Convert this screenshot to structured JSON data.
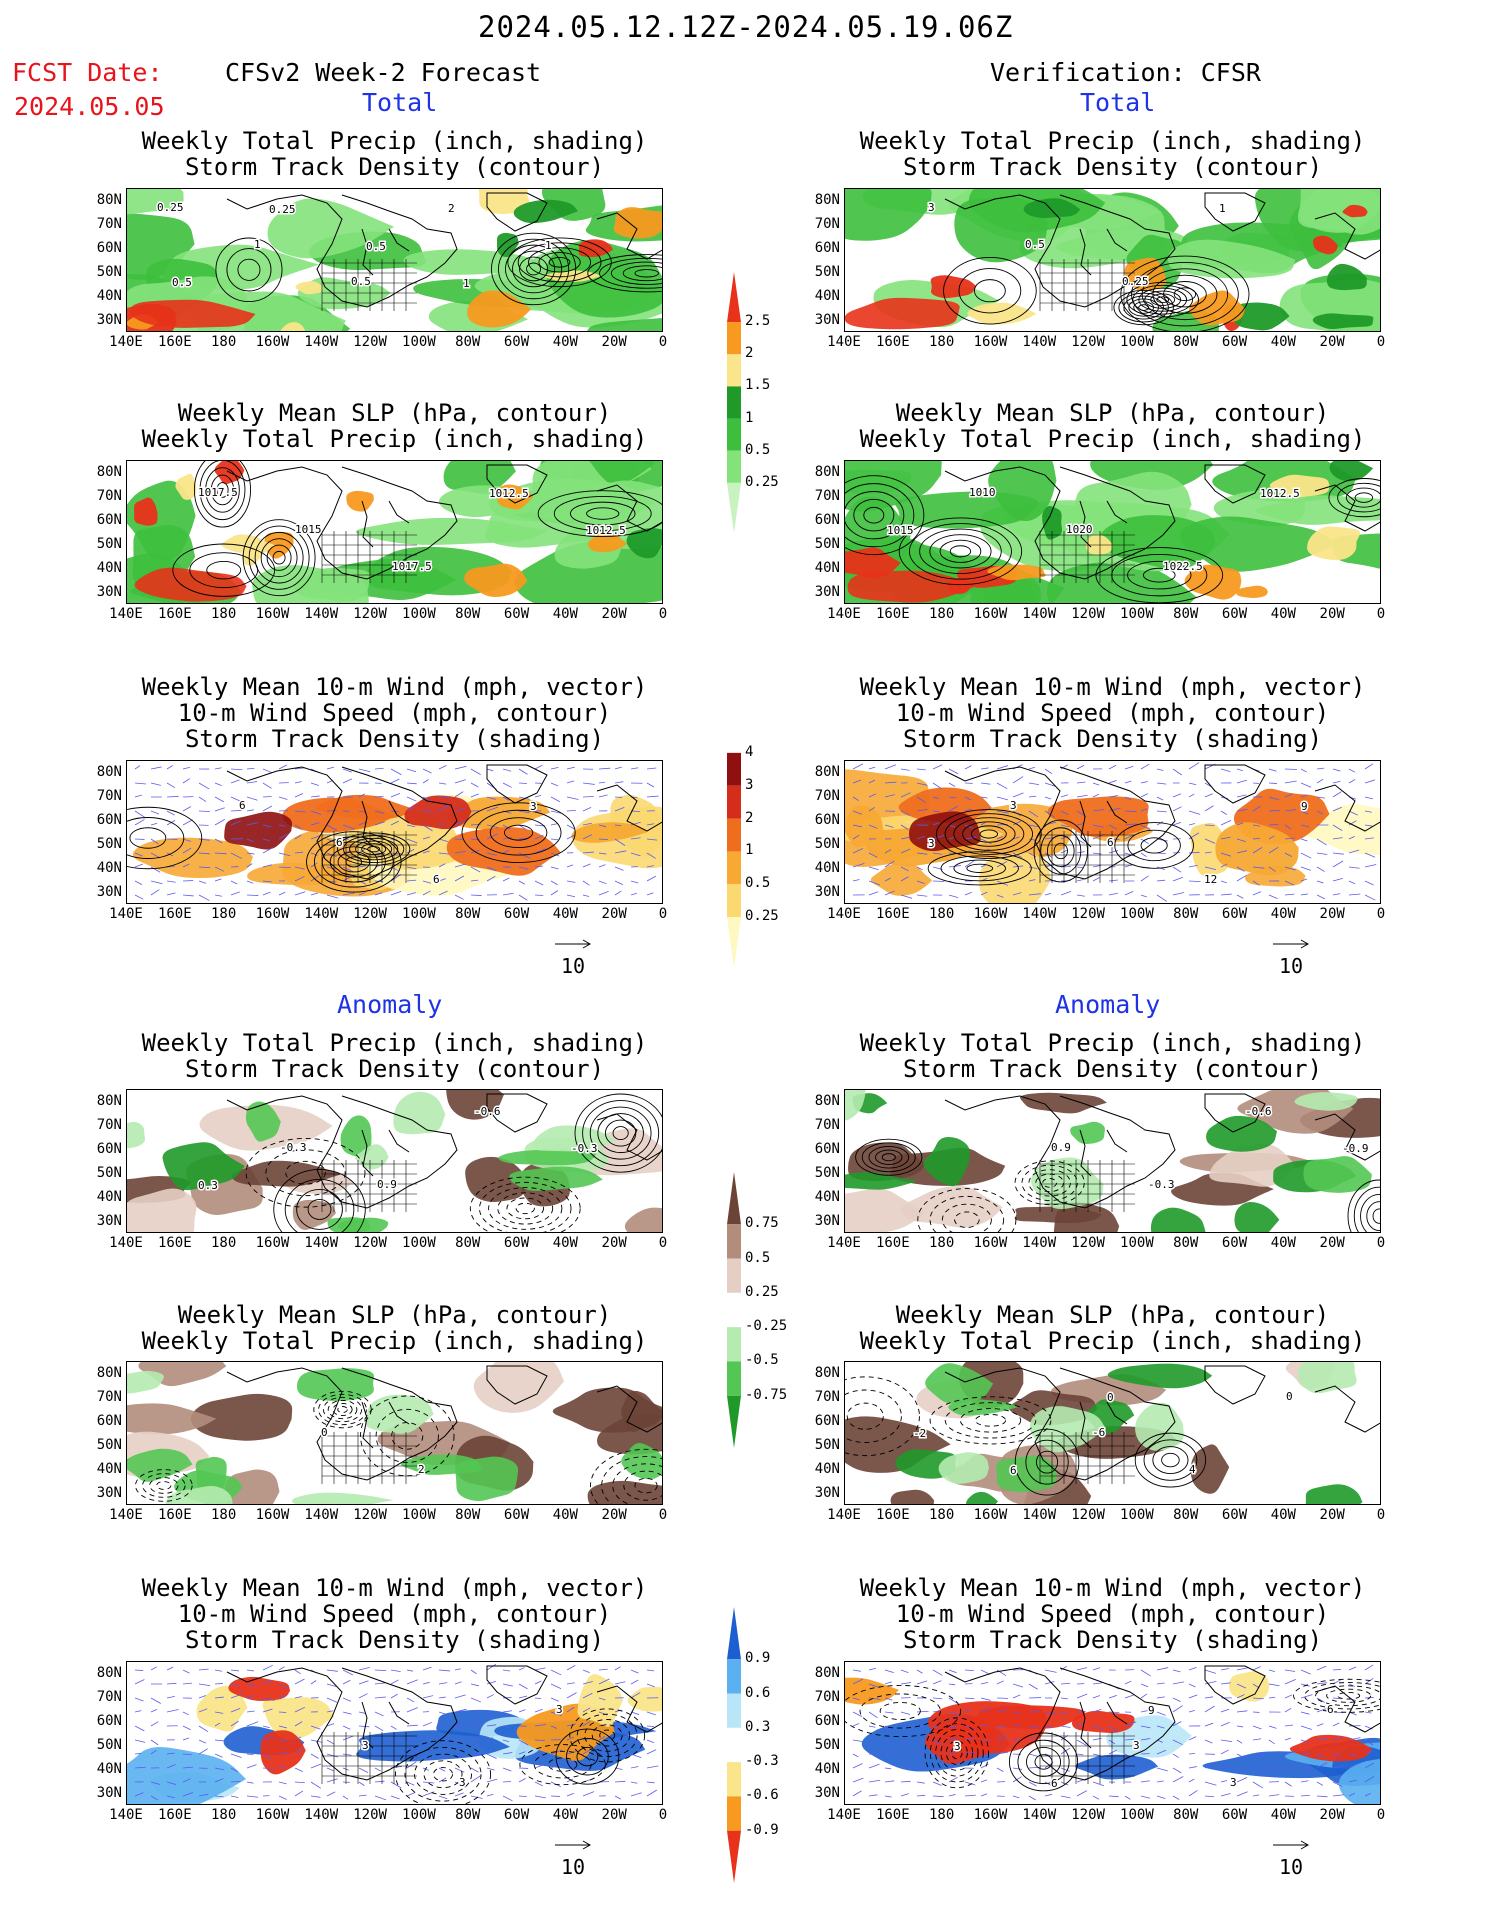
{
  "header": {
    "date_range": "2024.05.12.12Z-2024.05.19.06Z",
    "fcst_label": "FCST Date:",
    "fcst_date": "2024.05.05",
    "left_title": "CFSv2 Week-2 Forecast",
    "right_title": "Verification: CFSR",
    "section_total": "Total",
    "section_anomaly": "Anomaly"
  },
  "panel_titles": {
    "precip_storm": [
      "Weekly Total Precip (inch, shading)",
      "Storm Track Density (contour)"
    ],
    "slp_precip": [
      "Weekly Mean SLP (hPa, contour)",
      "Weekly Total Precip (inch, shading)"
    ],
    "wind": [
      "Weekly Mean 10-m Wind (mph, vector)",
      "10-m Wind Speed (mph, contour)",
      "Storm Track Density (shading)"
    ]
  },
  "axes": {
    "lat_labels": [
      "80N",
      "70N",
      "60N",
      "50N",
      "40N",
      "30N"
    ],
    "lon_labels": [
      "140E",
      "160E",
      "180",
      "160W",
      "140W",
      "120W",
      "100W",
      "80W",
      "60W",
      "40W",
      "20W",
      "0"
    ]
  },
  "vector_ref": "10",
  "colorbars": {
    "total_precip": [
      "2.5",
      "2",
      "1.5",
      "1",
      "0.5",
      "0.25"
    ],
    "total_storm": [
      "4",
      "3",
      "2",
      "1",
      "0.5",
      "0.25"
    ],
    "anom_precip": [
      "0.75",
      "0.5",
      "0.25",
      "-0.25",
      "-0.5",
      "-0.75"
    ],
    "anom_storm": [
      "0.9",
      "0.6",
      "0.3",
      "-0.3",
      "-0.6",
      "-0.9"
    ]
  },
  "colors": {
    "fcst_red": "#e8131b",
    "section_blue": "#1f33e6",
    "precip_scale": [
      "#c9f2c1",
      "#84e27b",
      "#3dbf3d",
      "#1f9a29",
      "#fbe58a",
      "#f79a1f",
      "#e8321a"
    ],
    "storm_scale": [
      "#fff8c0",
      "#fbd870",
      "#f7a934",
      "#ef6e1d",
      "#d42d1c",
      "#8e1010"
    ],
    "anom_precip_scale": [
      "#1f9a29",
      "#53c653",
      "#b5ebb0",
      "#ffffff",
      "#e5cfc4",
      "#b38d7c",
      "#6b4437"
    ],
    "anom_storm_scale": [
      "#e8321a",
      "#f79a1f",
      "#fbe58a",
      "#ffffff",
      "#b8e5f7",
      "#5ab0f0",
      "#1d5fd0"
    ]
  },
  "map_labels": {
    "r1l": [
      "0.25",
      "1",
      "0.5",
      "2",
      "1",
      "0.5",
      "0.25",
      "0.5",
      "1"
    ],
    "r1r": [
      "3",
      "0.5",
      "0.25",
      "1"
    ],
    "r2l": [
      "1017.5",
      "1015",
      "1017.5",
      "1012.5",
      "1012.5"
    ],
    "r2r": [
      "1010",
      "1020",
      "1022.5",
      "1012.5",
      "1015"
    ],
    "r3l": [
      "6",
      "6",
      "6",
      "3"
    ],
    "r3r": [
      "3",
      "6",
      "12",
      "9",
      "3"
    ],
    "r4l": [
      "-0.3",
      "0.9",
      "-0.6",
      "-0.3",
      "0.3"
    ],
    "r4r": [
      "0.9",
      "-0.3",
      "-0.6",
      "-0.9"
    ],
    "r5l": [
      "0",
      "2"
    ],
    "r5r": [
      "-6",
      "4",
      "0",
      "-2",
      "6",
      "0"
    ],
    "r6l": [
      "3",
      "3",
      "3"
    ],
    "r6r": [
      "3",
      "3",
      "6",
      "3",
      "6",
      "9"
    ]
  }
}
